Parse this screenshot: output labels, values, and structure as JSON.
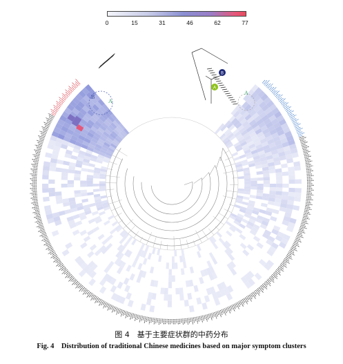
{
  "colorbar": {
    "ticks": [
      "0",
      "15",
      "31",
      "46",
      "62",
      "77"
    ],
    "colors": [
      "#f4f5fb",
      "#c7cbe8",
      "#8a8fd2",
      "#9a7dc7",
      "#e5577a",
      "#e84c5e"
    ]
  },
  "clusters": {
    "cluster_a_label": "A",
    "cluster_b_label": "B",
    "node_a_label": "A",
    "node_b_label": "B",
    "node_a_color": "#8fc31f",
    "node_b_color": "#1f2a7a"
  },
  "label_colors": {
    "red_group": "#d9323f",
    "blue_group": "#3a78c9",
    "default": "#222222"
  },
  "caption": {
    "cn": "图 4　基于主要症状群的中药分布",
    "en": "Fig. 4　Distribution of traditional Chinese medicines based on major symptom clusters"
  }
}
